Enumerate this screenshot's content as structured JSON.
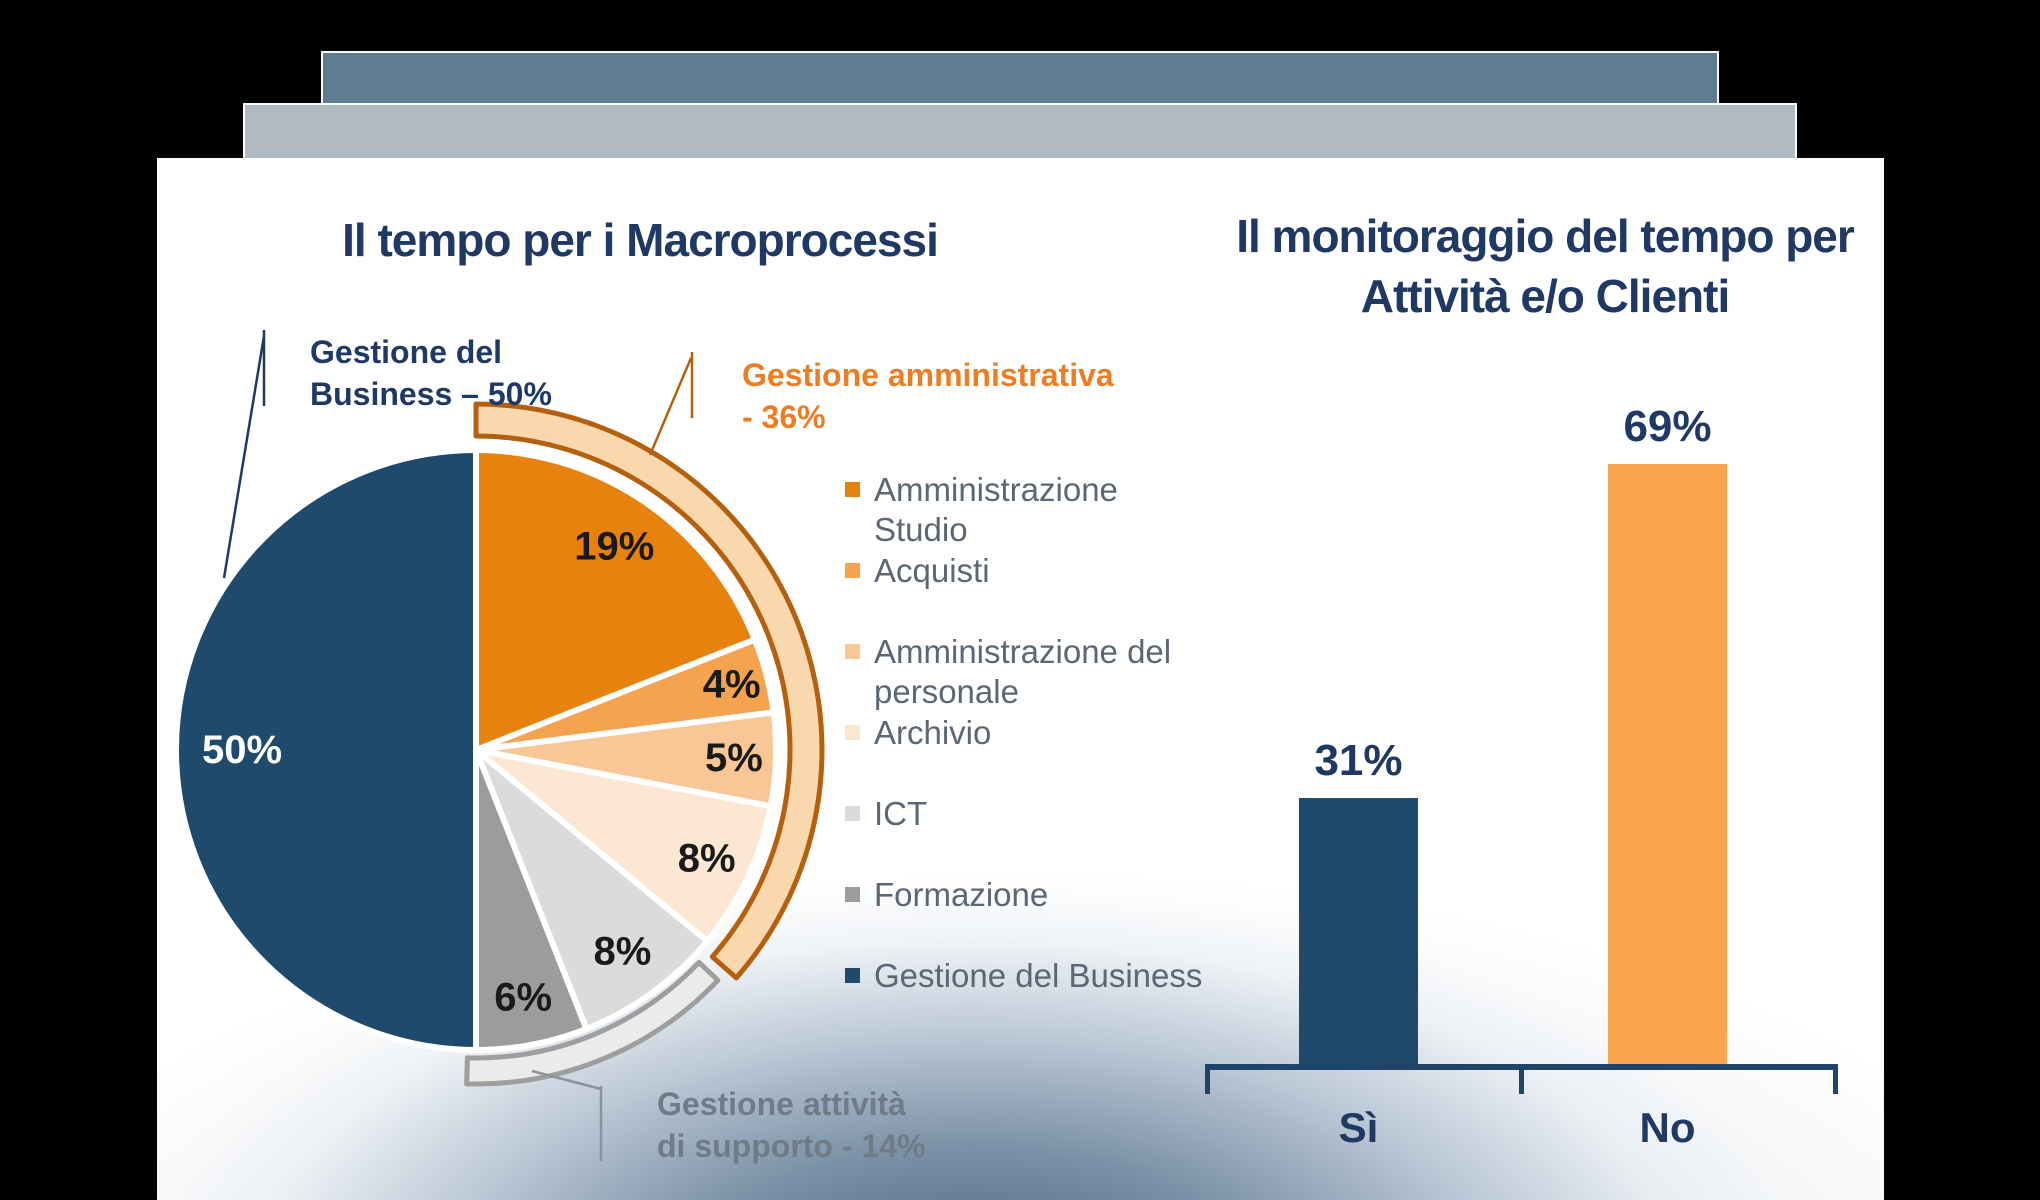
{
  "deck_bars": {
    "back_color": "#5E7D91",
    "front_color": "#AFBAC3"
  },
  "slide": {
    "background": "#FFFFFF",
    "glow_color": "#46627F"
  },
  "left_chart": {
    "title": "Il tempo per i Macroprocessi"
  },
  "right_chart": {
    "title_line1": "Il monitoraggio del tempo per",
    "title_line2": "Attività e/o Clienti"
  },
  "annotations": {
    "business": {
      "line1": "Gestione del",
      "line2": "Business – 50%",
      "color": "#1F3864"
    },
    "amministrativa": {
      "line1": "Gestione amministrativa",
      "line2": "-  36%",
      "color": "#ED7D23"
    },
    "supporto": {
      "line1": "Gestione attività",
      "line2": "di supporto -  14%",
      "color": "#6F7C88"
    }
  },
  "chart_data": [
    {
      "type": "pie",
      "title": "Il tempo per i Macroprocessi",
      "legend_position": "right",
      "slices": [
        {
          "label": "Amministrazione Studio",
          "value": 19,
          "color": "#E8820E",
          "label_color": "#1A1A1A"
        },
        {
          "label": "Acquisti",
          "value": 4,
          "color": "#F5A34F",
          "label_color": "#1A1A1A"
        },
        {
          "label": "Amministrazione del personale",
          "value": 5,
          "color": "#F8C795",
          "label_color": "#1A1A1A"
        },
        {
          "label": "Archivio",
          "value": 8,
          "color": "#FBE7D2",
          "label_color": "#1A1A1A"
        },
        {
          "label": "ICT",
          "value": 8,
          "color": "#DBDBDB",
          "label_color": "#1A1A1A"
        },
        {
          "label": "Formazione",
          "value": 6,
          "color": "#9C9C9C",
          "label_color": "#1A1A1A"
        },
        {
          "label": "Gestione del Business",
          "value": 50,
          "color": "#204A6B",
          "label_color": "#FFFFFF"
        }
      ],
      "groups": [
        {
          "label": "Gestione amministrativa",
          "value": 36,
          "start_pct": 0,
          "end_pct": 36,
          "band_fill": "#FAD8AE",
          "band_stroke": "#B4600F"
        },
        {
          "label": "Gestione attività di supporto",
          "value": 14,
          "start_pct": 36,
          "end_pct": 50,
          "band_fill": "#EBEBEB",
          "band_stroke": "#9E9E9E"
        },
        {
          "label": "Gestione del Business",
          "value": 50,
          "start_pct": 50,
          "end_pct": 100
        }
      ]
    },
    {
      "type": "bar",
      "title": "Il monitoraggio del tempo per Attività e/o Clienti",
      "categories": [
        "Sì",
        "No"
      ],
      "values": [
        31,
        69
      ],
      "bar_colors": [
        "#204A6B",
        "#F9A54D"
      ],
      "axis_color": "#1F4467",
      "ylim": [
        0,
        100
      ],
      "grid": false,
      "legend": false
    }
  ]
}
